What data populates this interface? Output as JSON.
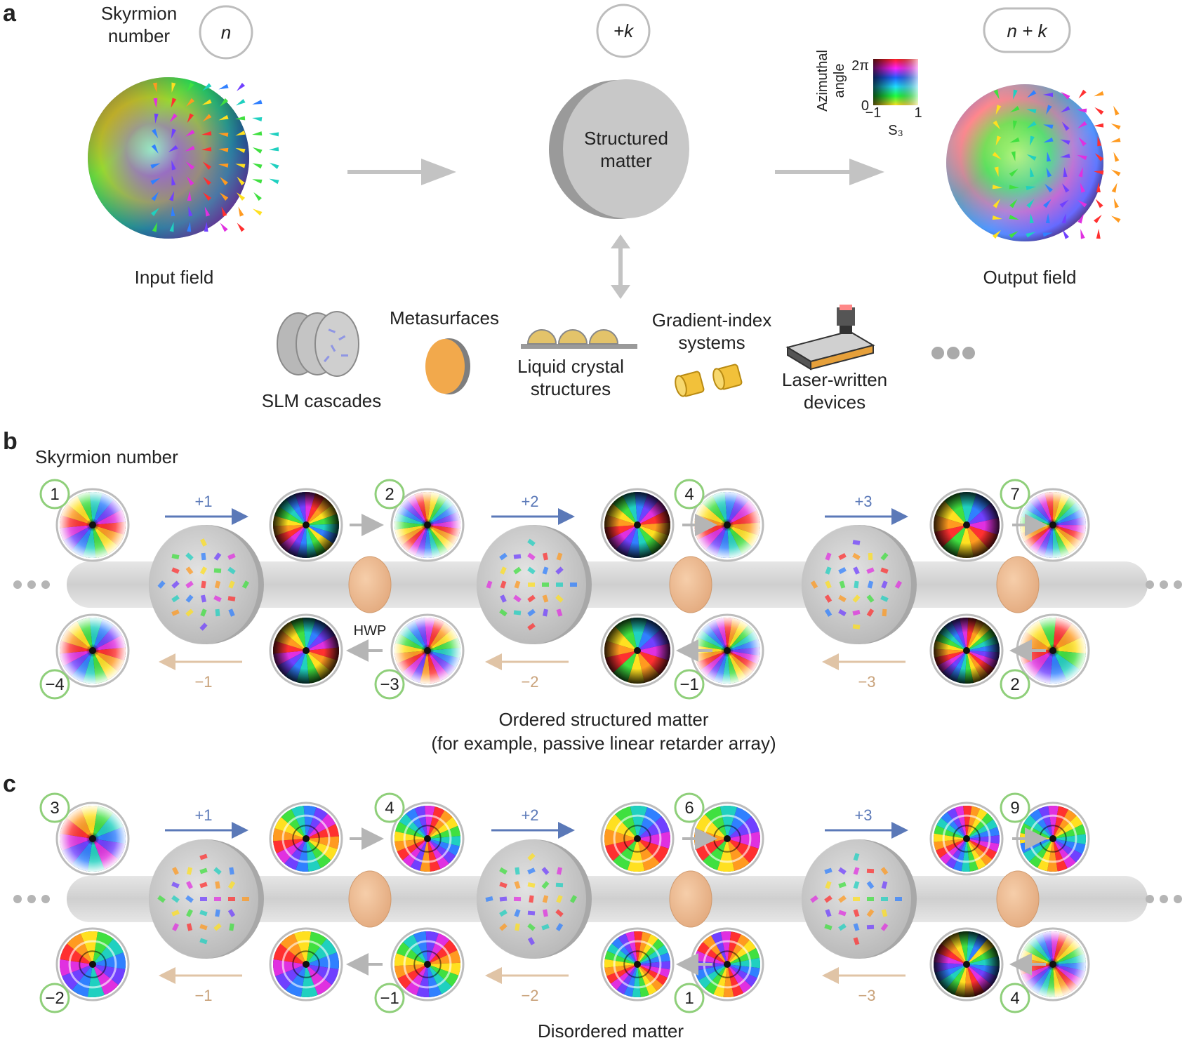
{
  "panels": {
    "a": "a",
    "b": "b",
    "c": "c"
  },
  "panel_a": {
    "skyrmion_label_1": "Skyrmion",
    "skyrmion_label_2": "number",
    "n_symbol": "n",
    "k_symbol": "+k",
    "nk_symbol": "n + k",
    "matter_1": "Structured",
    "matter_2": "matter",
    "input": "Input field",
    "output": "Output field",
    "colorbar": {
      "title_1": "Azimuthal",
      "title_2": "angle",
      "top": "2π",
      "bottom": "0",
      "left": "−1",
      "right": "1",
      "xlabel": "S₃"
    },
    "devices": {
      "slm": "SLM cascades",
      "meta": "Metasurfaces",
      "lc_1": "Liquid crystal",
      "lc_2": "structures",
      "grin_1": "Gradient-index",
      "grin_2": "systems",
      "laser_1": "Laser-written",
      "laser_2": "devices"
    }
  },
  "panel_b": {
    "title": "Skyrmion number",
    "top_numbers": [
      "1",
      "2",
      "4",
      "7"
    ],
    "bottom_numbers": [
      "−4",
      "−3",
      "−1",
      "2"
    ],
    "forward_steps": [
      "+1",
      "+2",
      "+3"
    ],
    "backward_steps": [
      "−1",
      "−2",
      "−3"
    ],
    "hwp": "HWP",
    "caption_1": "Ordered structured matter",
    "caption_2": "(for example, passive linear retarder array)"
  },
  "panel_c": {
    "top_numbers": [
      "3",
      "4",
      "6",
      "9"
    ],
    "bottom_numbers": [
      "−2",
      "−1",
      "1",
      "4"
    ],
    "forward_steps": [
      "+1",
      "+2",
      "+3"
    ],
    "backward_steps": [
      "−1",
      "−2",
      "−3"
    ],
    "caption": "Disordered matter"
  },
  "colors": {
    "forward_arrow": "#5b79b8",
    "backward_arrow": "#e0c4a6",
    "badge_ring": "#8fcf7a",
    "gray_arrow": "#b5b5b5",
    "hwp": "#e9b88f"
  }
}
